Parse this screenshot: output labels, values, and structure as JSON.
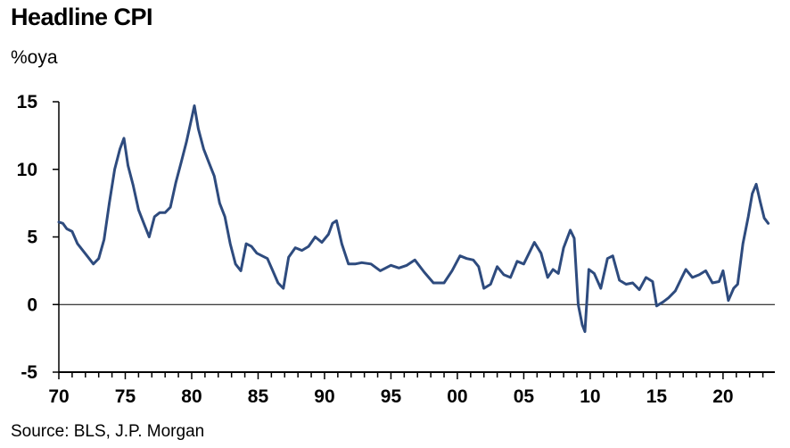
{
  "chart_data": {
    "type": "line",
    "title": "Headline CPI",
    "ylabel": "%oya",
    "source": "Source: BLS, J.P. Morgan",
    "xlim": [
      1970,
      2023.9
    ],
    "ylim": [
      -5,
      15
    ],
    "x_ticks": [
      1970,
      1975,
      1980,
      1985,
      1990,
      1995,
      2000,
      2005,
      2010,
      2015,
      2020
    ],
    "x_tick_labels": [
      "70",
      "75",
      "80",
      "85",
      "90",
      "95",
      "00",
      "05",
      "10",
      "15",
      "20"
    ],
    "y_ticks": [
      15,
      10,
      5,
      0,
      -5
    ],
    "y_tick_labels": [
      "15",
      "10",
      "5",
      "0",
      "-5"
    ],
    "grid": false,
    "zero_line": true,
    "series": [
      {
        "color": "#2e4b7e",
        "x": [
          1970.0,
          1970.3,
          1970.6,
          1971.0,
          1971.4,
          1971.8,
          1972.2,
          1972.6,
          1973.0,
          1973.4,
          1973.8,
          1974.2,
          1974.6,
          1974.9,
          1975.2,
          1975.6,
          1976.0,
          1976.4,
          1976.8,
          1977.2,
          1977.6,
          1978.0,
          1978.4,
          1978.8,
          1979.2,
          1979.6,
          1980.0,
          1980.2,
          1980.5,
          1980.9,
          1981.3,
          1981.7,
          1982.1,
          1982.5,
          1982.9,
          1983.3,
          1983.7,
          1984.1,
          1984.5,
          1984.9,
          1985.3,
          1985.7,
          1986.1,
          1986.5,
          1986.9,
          1987.3,
          1987.8,
          1988.3,
          1988.8,
          1989.3,
          1989.8,
          1990.3,
          1990.6,
          1990.9,
          1991.3,
          1991.8,
          1992.3,
          1992.8,
          1993.5,
          1994.2,
          1995.0,
          1995.6,
          1996.2,
          1996.8,
          1997.5,
          1998.2,
          1999.0,
          1999.6,
          2000.2,
          2000.7,
          2001.2,
          2001.6,
          2002.0,
          2002.5,
          2003.0,
          2003.5,
          2004.0,
          2004.5,
          2005.0,
          2005.5,
          2005.8,
          2006.3,
          2006.8,
          2007.2,
          2007.6,
          2008.0,
          2008.5,
          2008.8,
          2009.1,
          2009.4,
          2009.6,
          2009.9,
          2010.3,
          2010.8,
          2011.3,
          2011.7,
          2012.2,
          2012.7,
          2013.2,
          2013.7,
          2014.2,
          2014.7,
          2015.0,
          2015.5,
          2015.9,
          2016.4,
          2016.9,
          2017.2,
          2017.7,
          2018.2,
          2018.7,
          2019.2,
          2019.7,
          2020.0,
          2020.4,
          2020.8,
          2021.1,
          2021.5,
          2021.9,
          2022.2,
          2022.5,
          2022.8,
          2023.1,
          2023.4
        ],
        "values": [
          6.1,
          6.0,
          5.6,
          5.4,
          4.5,
          4.0,
          3.5,
          3.0,
          3.4,
          4.8,
          7.5,
          10.0,
          11.5,
          12.3,
          10.3,
          8.8,
          7.0,
          6.0,
          5.0,
          6.5,
          6.8,
          6.8,
          7.2,
          9.0,
          10.5,
          12.0,
          13.8,
          14.7,
          13.0,
          11.5,
          10.5,
          9.5,
          7.5,
          6.5,
          4.5,
          3.0,
          2.5,
          4.5,
          4.3,
          3.8,
          3.6,
          3.4,
          2.5,
          1.6,
          1.2,
          3.5,
          4.2,
          4.0,
          4.3,
          5.0,
          4.6,
          5.2,
          6.0,
          6.2,
          4.5,
          3.0,
          3.0,
          3.1,
          3.0,
          2.5,
          2.9,
          2.7,
          2.9,
          3.3,
          2.4,
          1.6,
          1.6,
          2.5,
          3.6,
          3.4,
          3.3,
          2.8,
          1.2,
          1.5,
          2.8,
          2.2,
          2.0,
          3.2,
          3.0,
          4.0,
          4.6,
          3.8,
          2.0,
          2.6,
          2.3,
          4.2,
          5.5,
          4.9,
          0.0,
          -1.5,
          -2.0,
          2.6,
          2.3,
          1.2,
          3.4,
          3.6,
          1.8,
          1.5,
          1.6,
          1.1,
          2.0,
          1.7,
          -0.1,
          0.2,
          0.5,
          1.0,
          2.0,
          2.6,
          2.0,
          2.2,
          2.5,
          1.6,
          1.7,
          2.5,
          0.3,
          1.2,
          1.5,
          4.5,
          6.5,
          8.2,
          8.9,
          7.6,
          6.4,
          6.0
        ]
      }
    ]
  }
}
